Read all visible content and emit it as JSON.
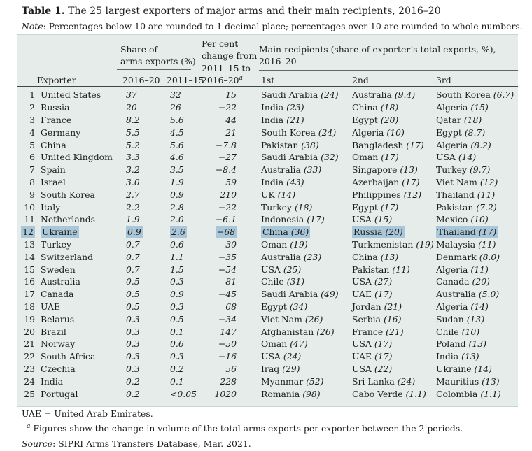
{
  "title": {
    "label": "Table 1.",
    "text": " The 25 largest exporters of major arms and their main recipients, 2016–20"
  },
  "note": {
    "label": "Note",
    "text": ": Percentages below 10 are rounded to 1 decimal place; percentages over 10 are rounded to whole numbers."
  },
  "header": {
    "exporter_label": "Exporter",
    "share_group_line1": "Share of",
    "share_group_line2": "arms exports (%)",
    "share_col_1": "2016–20",
    "share_col_2": "2011–15",
    "pct_lines": [
      "Per cent",
      "change from",
      "2011–15 to",
      "2016–20"
    ],
    "pct_superscript": "a",
    "recipients_group_line1": "Main recipients (share of exporter’s total exports, %),",
    "recipients_group_line2": "2016–20",
    "recipient_cols": [
      "1st",
      "2nd",
      "3rd"
    ]
  },
  "rows": [
    {
      "rank": "1",
      "exporter": "United States",
      "s2016": "37",
      "s2011": "32",
      "pct": "15",
      "recipients": [
        [
          "Saudi Arabia",
          "(24)"
        ],
        [
          "Australia",
          "(9.4)"
        ],
        [
          "South Korea",
          "(6.7)"
        ]
      ],
      "highlighted": false
    },
    {
      "rank": "2",
      "exporter": "Russia",
      "s2016": "20",
      "s2011": "26",
      "pct": "−22",
      "recipients": [
        [
          "India",
          "(23)"
        ],
        [
          "China",
          "(18)"
        ],
        [
          "Algeria",
          "(15)"
        ]
      ],
      "highlighted": false
    },
    {
      "rank": "3",
      "exporter": "France",
      "s2016": "8.2",
      "s2011": "5.6",
      "pct": "44",
      "recipients": [
        [
          "India",
          "(21)"
        ],
        [
          "Egypt",
          "(20)"
        ],
        [
          "Qatar",
          "(18)"
        ]
      ],
      "highlighted": false
    },
    {
      "rank": "4",
      "exporter": "Germany",
      "s2016": "5.5",
      "s2011": "4.5",
      "pct": "21",
      "recipients": [
        [
          "South Korea",
          "(24)"
        ],
        [
          "Algeria",
          "(10)"
        ],
        [
          "Egypt",
          "(8.7)"
        ]
      ],
      "highlighted": false
    },
    {
      "rank": "5",
      "exporter": "China",
      "s2016": "5.2",
      "s2011": "5.6",
      "pct": "−7.8",
      "recipients": [
        [
          "Pakistan",
          "(38)"
        ],
        [
          "Bangladesh",
          "(17)"
        ],
        [
          "Algeria",
          "(8.2)"
        ]
      ],
      "highlighted": false
    },
    {
      "rank": "6",
      "exporter": "United Kingdom",
      "s2016": "3.3",
      "s2011": "4.6",
      "pct": "−27",
      "recipients": [
        [
          "Saudi Arabia",
          "(32)"
        ],
        [
          "Oman",
          "(17)"
        ],
        [
          "USA",
          "(14)"
        ]
      ],
      "highlighted": false
    },
    {
      "rank": "7",
      "exporter": "Spain",
      "s2016": "3.2",
      "s2011": "3.5",
      "pct": "−8.4",
      "recipients": [
        [
          "Australia",
          "(33)"
        ],
        [
          "Singapore",
          "(13)"
        ],
        [
          "Turkey",
          "(9.7)"
        ]
      ],
      "highlighted": false
    },
    {
      "rank": "8",
      "exporter": "Israel",
      "s2016": "3.0",
      "s2011": "1.9",
      "pct": "59",
      "recipients": [
        [
          "India",
          "(43)"
        ],
        [
          "Azerbaijan",
          "(17)"
        ],
        [
          "Viet Nam",
          "(12)"
        ]
      ],
      "highlighted": false
    },
    {
      "rank": "9",
      "exporter": "South Korea",
      "s2016": "2.7",
      "s2011": "0.9",
      "pct": "210",
      "recipients": [
        [
          "UK",
          "(14)"
        ],
        [
          "Philippines",
          "(12)"
        ],
        [
          "Thailand",
          "(11)"
        ]
      ],
      "highlighted": false
    },
    {
      "rank": "10",
      "exporter": "Italy",
      "s2016": "2.2",
      "s2011": "2.8",
      "pct": "−22",
      "recipients": [
        [
          "Turkey",
          "(18)"
        ],
        [
          "Egypt",
          "(17)"
        ],
        [
          "Pakistan",
          "(7.2)"
        ]
      ],
      "highlighted": false
    },
    {
      "rank": "11",
      "exporter": "Netherlands",
      "s2016": "1.9",
      "s2011": "2.0",
      "pct": "−6.1",
      "recipients": [
        [
          "Indonesia",
          "(17)"
        ],
        [
          "USA",
          "(15)"
        ],
        [
          "Mexico",
          "(10)"
        ]
      ],
      "highlighted": false
    },
    {
      "rank": "12",
      "exporter": "Ukraine",
      "s2016": "0.9",
      "s2011": "2.6",
      "pct": "−68",
      "recipients": [
        [
          "China",
          "(36)"
        ],
        [
          "Russia",
          "(20)"
        ],
        [
          "Thailand",
          "(17)"
        ]
      ],
      "highlighted": true
    },
    {
      "rank": "13",
      "exporter": "Turkey",
      "s2016": "0.7",
      "s2011": "0.6",
      "pct": "30",
      "recipients": [
        [
          "Oman",
          "(19)"
        ],
        [
          "Turkmenistan",
          "(19)"
        ],
        [
          "Malaysia",
          "(11)"
        ]
      ],
      "highlighted": false
    },
    {
      "rank": "14",
      "exporter": "Switzerland",
      "s2016": "0.7",
      "s2011": "1.1",
      "pct": "−35",
      "recipients": [
        [
          "Australia",
          "(23)"
        ],
        [
          "China",
          "(13)"
        ],
        [
          "Denmark",
          "(8.0)"
        ]
      ],
      "highlighted": false
    },
    {
      "rank": "15",
      "exporter": "Sweden",
      "s2016": "0.7",
      "s2011": "1.5",
      "pct": "−54",
      "recipients": [
        [
          "USA",
          "(25)"
        ],
        [
          "Pakistan",
          "(11)"
        ],
        [
          "Algeria",
          "(11)"
        ]
      ],
      "highlighted": false
    },
    {
      "rank": "16",
      "exporter": "Australia",
      "s2016": "0.5",
      "s2011": "0.3",
      "pct": "81",
      "recipients": [
        [
          "Chile",
          "(31)"
        ],
        [
          "USA",
          "(27)"
        ],
        [
          "Canada",
          "(20)"
        ]
      ],
      "highlighted": false
    },
    {
      "rank": "17",
      "exporter": "Canada",
      "s2016": "0.5",
      "s2011": "0.9",
      "pct": "−45",
      "recipients": [
        [
          "Saudi Arabia",
          "(49)"
        ],
        [
          "UAE",
          "(17)"
        ],
        [
          "Australia",
          "(5.0)"
        ]
      ],
      "highlighted": false
    },
    {
      "rank": "18",
      "exporter": "UAE",
      "s2016": "0.5",
      "s2011": "0.3",
      "pct": "68",
      "recipients": [
        [
          "Egypt",
          "(34)"
        ],
        [
          "Jordan",
          "(21)"
        ],
        [
          "Algeria",
          "(14)"
        ]
      ],
      "highlighted": false
    },
    {
      "rank": "19",
      "exporter": "Belarus",
      "s2016": "0.3",
      "s2011": "0.5",
      "pct": "−34",
      "recipients": [
        [
          "Viet Nam",
          "(26)"
        ],
        [
          "Serbia",
          "(16)"
        ],
        [
          "Sudan",
          "(13)"
        ]
      ],
      "highlighted": false
    },
    {
      "rank": "20",
      "exporter": "Brazil",
      "s2016": "0.3",
      "s2011": "0.1",
      "pct": "147",
      "recipients": [
        [
          "Afghanistan",
          "(26)"
        ],
        [
          "France",
          "(21)"
        ],
        [
          "Chile",
          "(10)"
        ]
      ],
      "highlighted": false
    },
    {
      "rank": "21",
      "exporter": "Norway",
      "s2016": "0.3",
      "s2011": "0.6",
      "pct": "−50",
      "recipients": [
        [
          "Oman",
          "(47)"
        ],
        [
          "USA",
          "(17)"
        ],
        [
          "Poland",
          "(13)"
        ]
      ],
      "highlighted": false
    },
    {
      "rank": "22",
      "exporter": "South Africa",
      "s2016": "0.3",
      "s2011": "0.3",
      "pct": "−16",
      "recipients": [
        [
          "USA",
          "(24)"
        ],
        [
          "UAE",
          "(17)"
        ],
        [
          "India",
          "(13)"
        ]
      ],
      "highlighted": false
    },
    {
      "rank": "23",
      "exporter": "Czechia",
      "s2016": "0.3",
      "s2011": "0.2",
      "pct": "56",
      "recipients": [
        [
          "Iraq",
          "(29)"
        ],
        [
          "USA",
          "(22)"
        ],
        [
          "Ukraine",
          "(14)"
        ]
      ],
      "highlighted": false
    },
    {
      "rank": "24",
      "exporter": "India",
      "s2016": "0.2",
      "s2011": "0.1",
      "pct": "228",
      "recipients": [
        [
          "Myanmar",
          "(52)"
        ],
        [
          "Sri Lanka",
          "(24)"
        ],
        [
          "Mauritius",
          "(13)"
        ]
      ],
      "highlighted": false
    },
    {
      "rank": "25",
      "exporter": "Portugal",
      "s2016": "0.2",
      "s2011": "<0.05",
      "pct": "1020",
      "recipients": [
        [
          "Romania",
          "(98)"
        ],
        [
          "Cabo Verde",
          "(1.1)"
        ],
        [
          "Colombia",
          "(1.1)"
        ]
      ],
      "highlighted": false
    }
  ],
  "footer": {
    "abbrev": "UAE = United Arab Emirates.",
    "footnote_sup": "a",
    "footnote_text": " Figures show the change in volume of the total arms exports per exporter between the 2 periods.",
    "source_label": "Source",
    "source_text": ": SIPRI Arms Transfers Database, Mar. 2021."
  },
  "colors": {
    "table_bg": "#e6ecea",
    "border_light": "#c2d8d2",
    "border_dark": "#3d4a4a",
    "underline": "#5a6a6a",
    "highlight": "#a9c7d8",
    "text": "#1c1c1c"
  }
}
